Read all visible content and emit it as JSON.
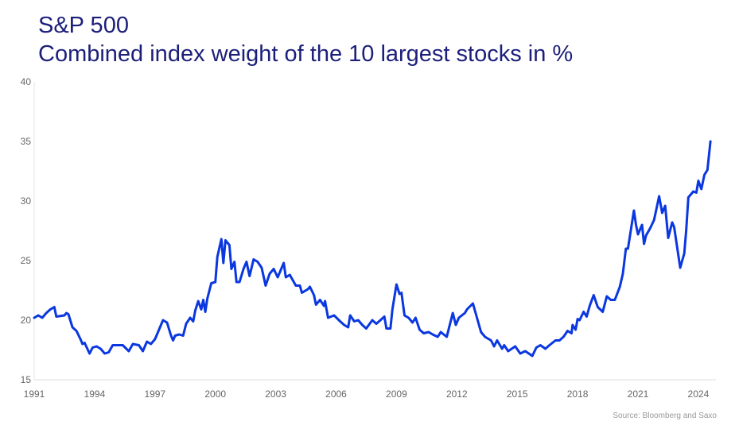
{
  "chart_data": {
    "type": "line",
    "title": "S&P 500",
    "subtitle": "Combined index weight of the 10 largest stocks in %",
    "xlabel": "",
    "ylabel": "",
    "xlim": [
      1991,
      2024.9
    ],
    "ylim": [
      15,
      40
    ],
    "x_ticks": [
      "1991",
      "1994",
      "1997",
      "2000",
      "2003",
      "2006",
      "2009",
      "2012",
      "2015",
      "2018",
      "2021",
      "2024"
    ],
    "y_ticks": [
      "15",
      "20",
      "25",
      "30",
      "35",
      "40"
    ],
    "grid": false,
    "line_color": "#0a37e0",
    "source": "Source: Bloomberg and Saxo",
    "series": [
      {
        "x": [
          1991.0,
          1991.2,
          1991.4,
          1991.6,
          1991.8,
          1992.0,
          1992.1,
          1992.5,
          1992.6,
          1992.7,
          1992.9,
          1993.1,
          1993.3,
          1993.4,
          1993.5,
          1993.75,
          1993.9,
          1994.1,
          1994.3,
          1994.5,
          1994.7,
          1994.9,
          1995.4,
          1995.7,
          1995.9,
          1996.2,
          1996.4,
          1996.6,
          1996.8,
          1997.0,
          1997.2,
          1997.4,
          1997.6,
          1997.8,
          1997.9,
          1998.0,
          1998.2,
          1998.4,
          1998.55,
          1998.75,
          1998.9,
          1999.0,
          1999.15,
          1999.3,
          1999.4,
          1999.5,
          1999.6,
          1999.8,
          2000.0,
          2000.1,
          2000.3,
          2000.4,
          2000.5,
          2000.7,
          2000.8,
          2000.95,
          2001.05,
          2001.2,
          2001.4,
          2001.55,
          2001.7,
          2001.9,
          2002.1,
          2002.3,
          2002.5,
          2002.7,
          2002.9,
          2003.1,
          2003.4,
          2003.5,
          2003.7,
          2004.0,
          2004.2,
          2004.3,
          2004.6,
          2004.7,
          2004.9,
          2005.0,
          2005.2,
          2005.4,
          2005.45,
          2005.6,
          2005.9,
          2006.2,
          2006.4,
          2006.6,
          2006.7,
          2006.9,
          2007.1,
          2007.3,
          2007.5,
          2007.8,
          2008.0,
          2008.2,
          2008.4,
          2008.5,
          2008.7,
          2008.8,
          2009.0,
          2009.15,
          2009.25,
          2009.4,
          2009.6,
          2009.8,
          2009.95,
          2010.15,
          2010.35,
          2010.6,
          2010.8,
          2011.05,
          2011.2,
          2011.5,
          2011.8,
          2011.95,
          2012.1,
          2012.4,
          2012.5,
          2012.8,
          2013.2,
          2013.4,
          2013.7,
          2013.85,
          2014.0,
          2014.25,
          2014.35,
          2014.55,
          2014.9,
          2015.15,
          2015.4,
          2015.75,
          2015.95,
          2016.15,
          2016.4,
          2016.6,
          2016.9,
          2017.1,
          2017.3,
          2017.5,
          2017.7,
          2017.75,
          2017.9,
          2018.0,
          2018.1,
          2018.3,
          2018.45,
          2018.6,
          2018.8,
          2019.0,
          2019.25,
          2019.45,
          2019.65,
          2019.85,
          2020.1,
          2020.25,
          2020.4,
          2020.5,
          2020.8,
          2020.9,
          2021.0,
          2021.2,
          2021.3,
          2021.4,
          2021.6,
          2021.8,
          2022.05,
          2022.2,
          2022.35,
          2022.5,
          2022.7,
          2022.8,
          2023.1,
          2023.3,
          2023.4,
          2023.5,
          2023.75,
          2023.9,
          2024.0,
          2024.15,
          2024.3,
          2024.45,
          2024.6
        ],
        "values": [
          20.2,
          20.4,
          20.2,
          20.6,
          20.9,
          21.1,
          20.3,
          20.4,
          20.6,
          20.5,
          19.4,
          19.1,
          18.4,
          18.0,
          18.1,
          17.2,
          17.7,
          17.8,
          17.6,
          17.2,
          17.3,
          17.9,
          17.9,
          17.4,
          18.0,
          17.9,
          17.4,
          18.2,
          18.0,
          18.4,
          19.2,
          20.0,
          19.8,
          18.7,
          18.3,
          18.7,
          18.8,
          18.7,
          19.7,
          20.2,
          19.9,
          20.8,
          21.6,
          20.9,
          21.7,
          20.7,
          21.8,
          23.1,
          23.2,
          25.3,
          26.8,
          24.8,
          26.7,
          26.3,
          24.3,
          24.9,
          23.2,
          23.2,
          24.3,
          24.9,
          23.7,
          25.1,
          24.9,
          24.4,
          22.9,
          23.9,
          24.3,
          23.6,
          24.8,
          23.6,
          23.8,
          22.9,
          22.9,
          22.3,
          22.6,
          22.8,
          22.1,
          21.3,
          21.7,
          21.2,
          21.6,
          20.2,
          20.4,
          19.9,
          19.6,
          19.4,
          20.4,
          19.9,
          20.0,
          19.6,
          19.3,
          20.0,
          19.7,
          20.0,
          20.3,
          19.3,
          19.3,
          20.9,
          23.0,
          22.2,
          22.3,
          20.4,
          20.2,
          19.8,
          20.2,
          19.2,
          18.9,
          19.0,
          18.8,
          18.6,
          19.0,
          18.6,
          20.6,
          19.6,
          20.2,
          20.6,
          20.9,
          21.4,
          19.0,
          18.6,
          18.3,
          17.8,
          18.3,
          17.6,
          17.9,
          17.4,
          17.8,
          17.2,
          17.4,
          17.0,
          17.7,
          17.9,
          17.6,
          17.9,
          18.3,
          18.3,
          18.6,
          19.1,
          18.9,
          19.6,
          19.2,
          20.1,
          20.0,
          20.7,
          20.3,
          21.2,
          22.1,
          21.1,
          20.7,
          22.0,
          21.7,
          21.7,
          22.8,
          23.9,
          26.0,
          26.0,
          29.2,
          28.0,
          27.2,
          28.0,
          26.4,
          27.1,
          27.7,
          28.4,
          30.4,
          29.0,
          29.6,
          26.9,
          28.2,
          27.8,
          24.4,
          25.6,
          27.6,
          30.3,
          30.8,
          30.7,
          31.7,
          31.0,
          32.2,
          32.6,
          35.0
        ]
      }
    ]
  }
}
